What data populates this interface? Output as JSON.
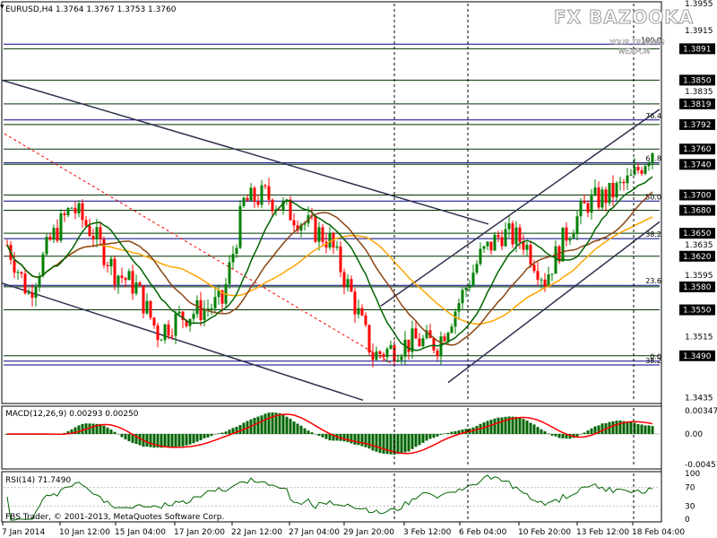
{
  "window": {
    "symbol_line": "EURUSD,H4  1.3764 1.3767 1.3753 1.3760",
    "copyright": "FBS Trader, © 2001-2013, MetaQuotes Software Corp.",
    "logo_main": "FX BAZOOKA",
    "logo_sub1": "YOUR TRADING",
    "logo_sub2": "WEAPON"
  },
  "colors": {
    "bull": "#008000",
    "bear": "#ff0000",
    "ma_fast": "#006400",
    "ma_slow": "#8b4513",
    "ma_orange": "#ffa500",
    "levels": "#003300",
    "fib": "#000080",
    "macd_hist": "#006400",
    "macd_signal": "#ff0000",
    "rsi": "#006400"
  },
  "price_axis": {
    "min": 1.343,
    "max": 1.395,
    "ticks": [
      "1.3915",
      "1.3835",
      "1.3760",
      "1.3635",
      "1.3595",
      "1.3515",
      "1.3435",
      "1.3955"
    ]
  },
  "levels": [
    {
      "label": "1.3891",
      "value": 1.3891
    },
    {
      "label": "1.3850",
      "value": 1.385
    },
    {
      "label": "1.3819",
      "value": 1.3819
    },
    {
      "label": "1.3792",
      "value": 1.3792
    },
    {
      "label": "1.3760",
      "value": 1.376
    },
    {
      "label": "1.3740",
      "value": 1.374
    },
    {
      "label": "1.3700",
      "value": 1.37
    },
    {
      "label": "1.3680",
      "value": 1.368
    },
    {
      "label": "1.3650",
      "value": 1.365
    },
    {
      "label": "1.3620",
      "value": 1.362
    },
    {
      "label": "1.3580",
      "value": 1.358
    },
    {
      "label": "1.3550",
      "value": 1.355
    },
    {
      "label": "1.3490",
      "value": 1.349
    }
  ],
  "fib_levels": [
    {
      "label": "100.0",
      "value": 1.3897
    },
    {
      "label": "76.4",
      "value": 1.3798
    },
    {
      "label": "61.8",
      "value": 1.3742
    },
    {
      "label": "50.0",
      "value": 1.3692
    },
    {
      "label": "38.2",
      "value": 1.3643
    },
    {
      "label": "23.6",
      "value": 1.3582
    },
    {
      "label": "0.0",
      "value": 1.3483
    },
    {
      "label": "38.2",
      "value": 1.3478
    }
  ],
  "macd": {
    "label": "MACD(12,26,9) 0.00293 0.00250",
    "ticks": [
      "0.00347",
      "0.00",
      "-0.00457"
    ]
  },
  "rsi": {
    "label": "RSI(14) 71.7490",
    "ticks": [
      "100",
      "70",
      "30",
      "0"
    ]
  },
  "time_axis": {
    "labels": [
      "7 Jan 2014",
      "10 Jan 12:00",
      "15 Jan 04:00",
      "17 Jan 20:00",
      "22 Jan 12:00",
      "27 Jan 04:00",
      "29 Jan 20:00",
      "3 Feb 12:00",
      "6 Feb 04:00",
      "10 Feb 20:00",
      "13 Feb 12:00",
      "18 Feb 04:00"
    ]
  },
  "chart_data": {
    "type": "candlestick",
    "symbol": "EURUSD",
    "timeframe": "H4",
    "ohlc_last": {
      "open": 1.3764,
      "high": 1.3767,
      "low": 1.3753,
      "close": 1.376
    },
    "close_path_anchors": [
      [
        0,
        1.3635
      ],
      [
        6,
        1.357
      ],
      [
        12,
        1.364
      ],
      [
        18,
        1.3685
      ],
      [
        24,
        1.365
      ],
      [
        30,
        1.36
      ],
      [
        36,
        1.358
      ],
      [
        42,
        1.352
      ],
      [
        48,
        1.354
      ],
      [
        54,
        1.355
      ],
      [
        60,
        1.356
      ],
      [
        66,
        1.369
      ],
      [
        72,
        1.37
      ],
      [
        78,
        1.368
      ],
      [
        84,
        1.366
      ],
      [
        90,
        1.364
      ],
      [
        96,
        1.357
      ],
      [
        102,
        1.349
      ],
      [
        108,
        1.35
      ],
      [
        114,
        1.351
      ],
      [
        120,
        1.3505
      ],
      [
        126,
        1.356
      ],
      [
        132,
        1.362
      ],
      [
        138,
        1.365
      ],
      [
        144,
        1.364
      ],
      [
        150,
        1.359
      ],
      [
        156,
        1.365
      ],
      [
        162,
        1.369
      ],
      [
        168,
        1.37
      ],
      [
        174,
        1.372
      ],
      [
        180,
        1.376
      ]
    ]
  }
}
